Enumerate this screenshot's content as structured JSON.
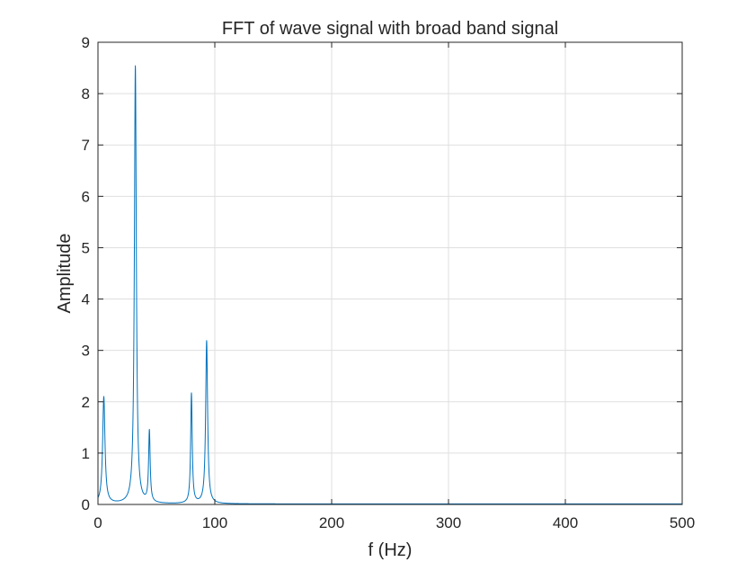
{
  "chart_data": {
    "type": "line",
    "title": "FFT of wave signal with broad band signal",
    "xlabel": "f (Hz)",
    "ylabel": "Amplitude",
    "xlim": [
      0,
      500
    ],
    "ylim": [
      0,
      9
    ],
    "xticks": [
      "0",
      "100",
      "200",
      "300",
      "400",
      "500"
    ],
    "yticks": [
      "0",
      "1",
      "2",
      "3",
      "4",
      "5",
      "6",
      "7",
      "8",
      "9"
    ],
    "grid": true,
    "line_color": "#0072BD",
    "peaks": [
      {
        "f": 5,
        "amplitude": 2.08,
        "width": 1.2
      },
      {
        "f": 32,
        "amplitude": 8.52,
        "width": 1.0
      },
      {
        "f": 44,
        "amplitude": 1.39,
        "width": 0.8
      },
      {
        "f": 80,
        "amplitude": 2.14,
        "width": 0.8
      },
      {
        "f": 93,
        "amplitude": 3.17,
        "width": 1.0
      }
    ],
    "baseline": 0.01
  }
}
